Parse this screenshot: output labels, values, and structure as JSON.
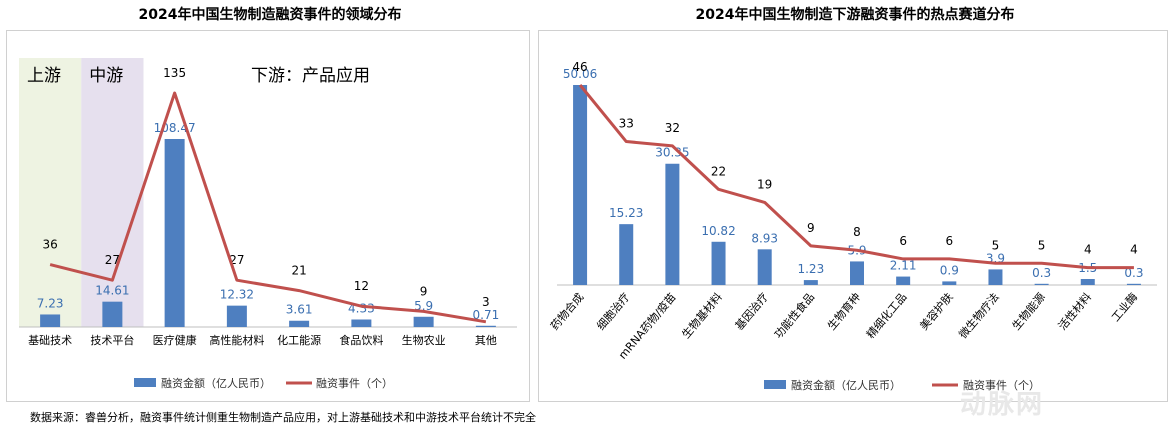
{
  "footnote": "数据来源：睿兽分析，融资事件统计侧重生物制造产品应用，对上游基础技术和中游技术平台统计不完全",
  "watermark": "动脉网",
  "chart_data": [
    {
      "type": "bar+line",
      "title": "2024年中国生物制造融资事件的领域分布",
      "categories": [
        "基础技术",
        "技术平台",
        "医疗健康",
        "高性能材料",
        "化工能源",
        "食品饮料",
        "生物农业",
        "其他"
      ],
      "series": [
        {
          "name": "融资金额（亿人民币）",
          "type": "bar",
          "color": "#4e7fc0",
          "values": [
            7.23,
            14.61,
            108.47,
            12.32,
            3.61,
            4.33,
            5.9,
            0.71
          ]
        },
        {
          "name": "融资事件（个）",
          "type": "line",
          "color": "#c0504d",
          "values": [
            36,
            27,
            135,
            27,
            21,
            12,
            9,
            3
          ]
        }
      ],
      "annotations": [
        {
          "text": "上游",
          "color": "#eef3e2"
        },
        {
          "text": "中游",
          "color": "#e6e0ee"
        },
        {
          "text": "下游：产品应用"
        }
      ],
      "legend": "bottom",
      "grid": false
    },
    {
      "type": "bar+line",
      "title": "2024年中国生物制造下游融资事件的热点赛道分布",
      "categories": [
        "药物合成",
        "细胞治疗",
        "mRNA药物/疫苗",
        "生物基材料",
        "基因治疗",
        "功能性食品",
        "生物育种",
        "精细化工品",
        "美容护肤",
        "微生物疗法",
        "生物能源",
        "活性材料",
        "工业酶"
      ],
      "series": [
        {
          "name": "融资金额（亿人民币）",
          "type": "bar",
          "color": "#4e7fc0",
          "values": [
            50.06,
            15.23,
            30.35,
            10.82,
            8.93,
            1.23,
            5.9,
            2.11,
            0.9,
            3.9,
            0.3,
            1.5,
            0.3
          ]
        },
        {
          "name": "融资事件（个）",
          "type": "line",
          "color": "#c0504d",
          "values": [
            46,
            33,
            32,
            22,
            19,
            9,
            8,
            6,
            6,
            5,
            5,
            4,
            4
          ]
        }
      ],
      "legend": "bottom",
      "grid": false
    }
  ]
}
